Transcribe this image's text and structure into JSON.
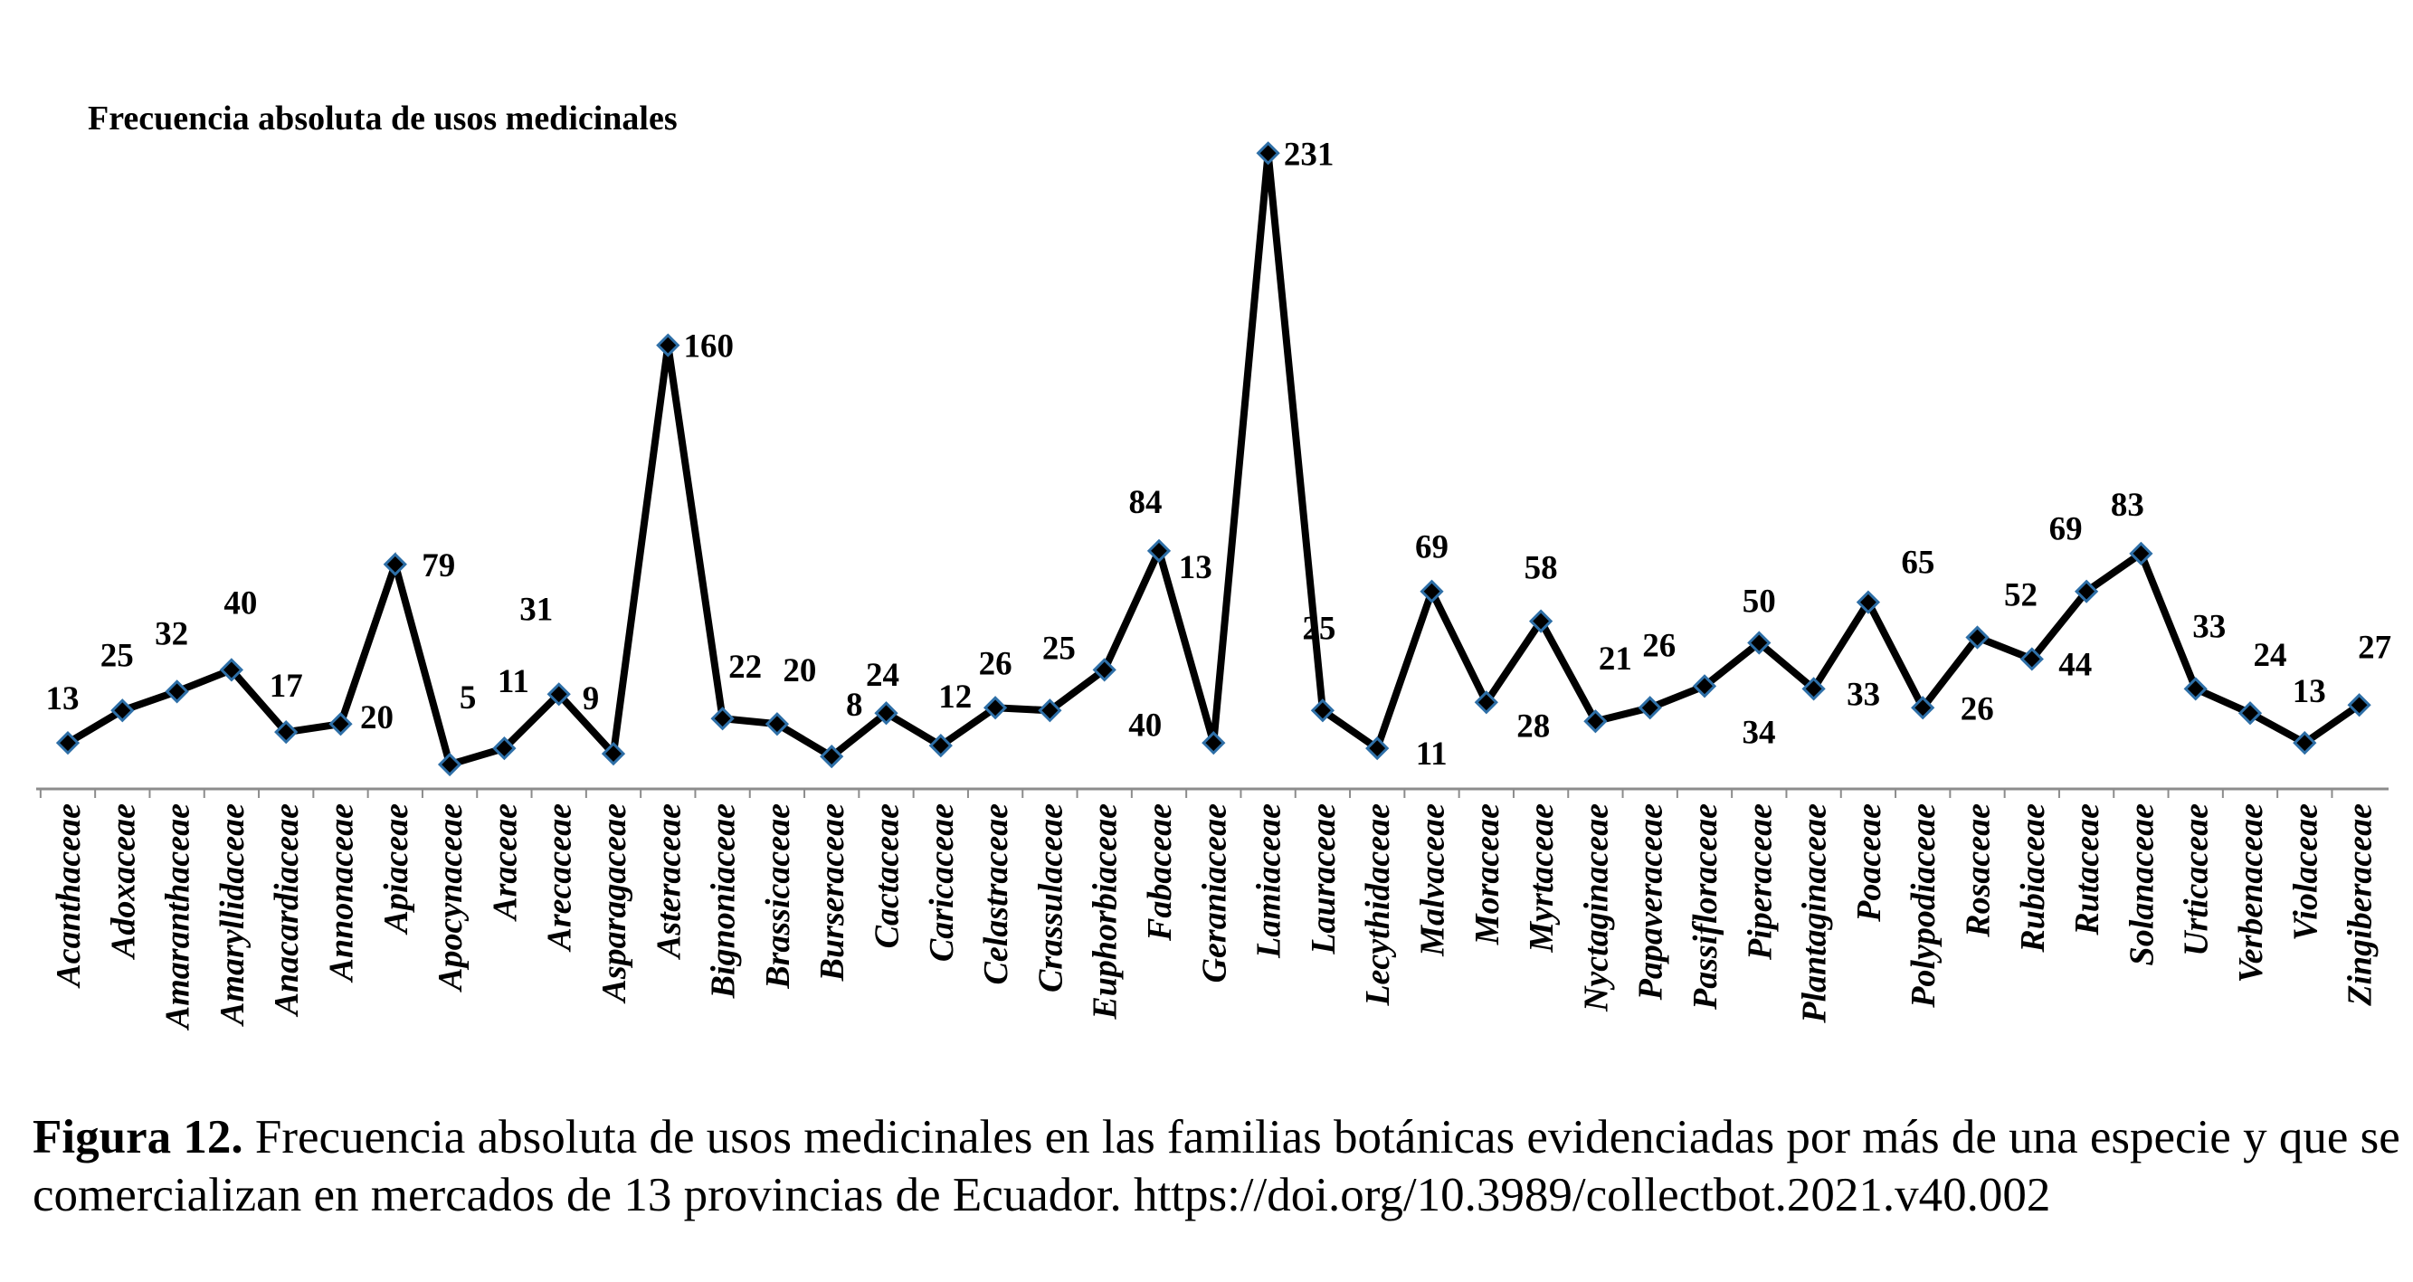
{
  "chart_data": {
    "type": "line",
    "title": "Frecuencia absoluta de usos medicinales",
    "xlabel": "",
    "ylabel": "",
    "ylim": [
      0,
      240
    ],
    "grid": false,
    "legend": "none",
    "categories": [
      "Acanthaceae",
      "Adoxaceae",
      "Amaranthaceae",
      "Amaryllidaceae",
      "Anacardiaceae",
      "Annonaceae",
      "Apiaceae",
      "Apocynaceae",
      "Araceae",
      "Arecaceae",
      "Asparagaceae",
      "Asteraceae",
      "Bignoniaceae",
      "Brassicaceae",
      "Burseraceae",
      "Cactaceae",
      "Caricaceae",
      "Celastraceae",
      "Crassulaceae",
      "Euphorbiaceae",
      "Fabaceae",
      "Geraniaceae",
      "Lamiaceae",
      "Lauraceae",
      "Lecythidaceae",
      "Malvaceae",
      "Moraceae",
      "Myrtaceae",
      "Nyctaginaceae",
      "Papaveraceae",
      "Passifloraceae",
      "Piperaceae",
      "Plantaginaceae",
      "Poaceae",
      "Polypodiaceae",
      "Rosaceae",
      "Rubiaceae",
      "Rutaceae",
      "Solanaceae",
      "Urticaceae",
      "Verbenaceae",
      "Violaceae",
      "Zingiberaceae"
    ],
    "values": [
      13,
      25,
      32,
      40,
      17,
      20,
      79,
      5,
      11,
      31,
      9,
      160,
      22,
      20,
      8,
      24,
      12,
      26,
      25,
      40,
      84,
      13,
      231,
      25,
      11,
      69,
      28,
      58,
      21,
      26,
      34,
      50,
      33,
      65,
      26,
      52,
      44,
      69,
      83,
      33,
      24,
      13,
      27
    ],
    "line_color": "#000000",
    "marker_color": "#2e6fa7"
  },
  "caption": {
    "label": "Figura 12.",
    "text": " Frecuencia absoluta de usos medicinales en las familias botánicas evidenciadas por más de una especie y que se comercializan en mercados de 13 provincias de Ecuador. https://doi.org/10.3989/collectbot.2021.v40.002"
  }
}
